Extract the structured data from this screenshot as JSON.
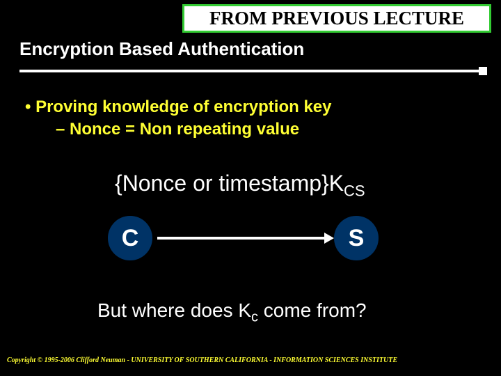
{
  "banner": {
    "text": "FROM PREVIOUS LECTURE",
    "border_color": "#33cc33",
    "bg_color": "#ffffff",
    "font_color": "#000000"
  },
  "title": {
    "text": "Encryption Based Authentication",
    "color": "#ffffff"
  },
  "bullets": {
    "b1": "•  Proving knowledge of encryption key",
    "b2": "–  Nonce = Non repeating value",
    "color": "#ffff33"
  },
  "formula": {
    "prefix": "{Nonce or timestamp}K",
    "subscript": "CS",
    "color": "#ffffff"
  },
  "nodes": {
    "c_label": "C",
    "s_label": "S",
    "fill_color": "#003366",
    "text_color": "#ffffff"
  },
  "arrow": {
    "color": "#ffffff"
  },
  "question": {
    "prefix": "But where does K",
    "subscript": "c",
    "suffix": " come from?",
    "color": "#ffffff"
  },
  "copyright": {
    "text": "Copyright © 1995-2006 Clifford Neuman - UNIVERSITY OF SOUTHERN CALIFORNIA - INFORMATION SCIENCES INSTITUTE",
    "color": "#ffff33"
  },
  "background_color": "#000000"
}
